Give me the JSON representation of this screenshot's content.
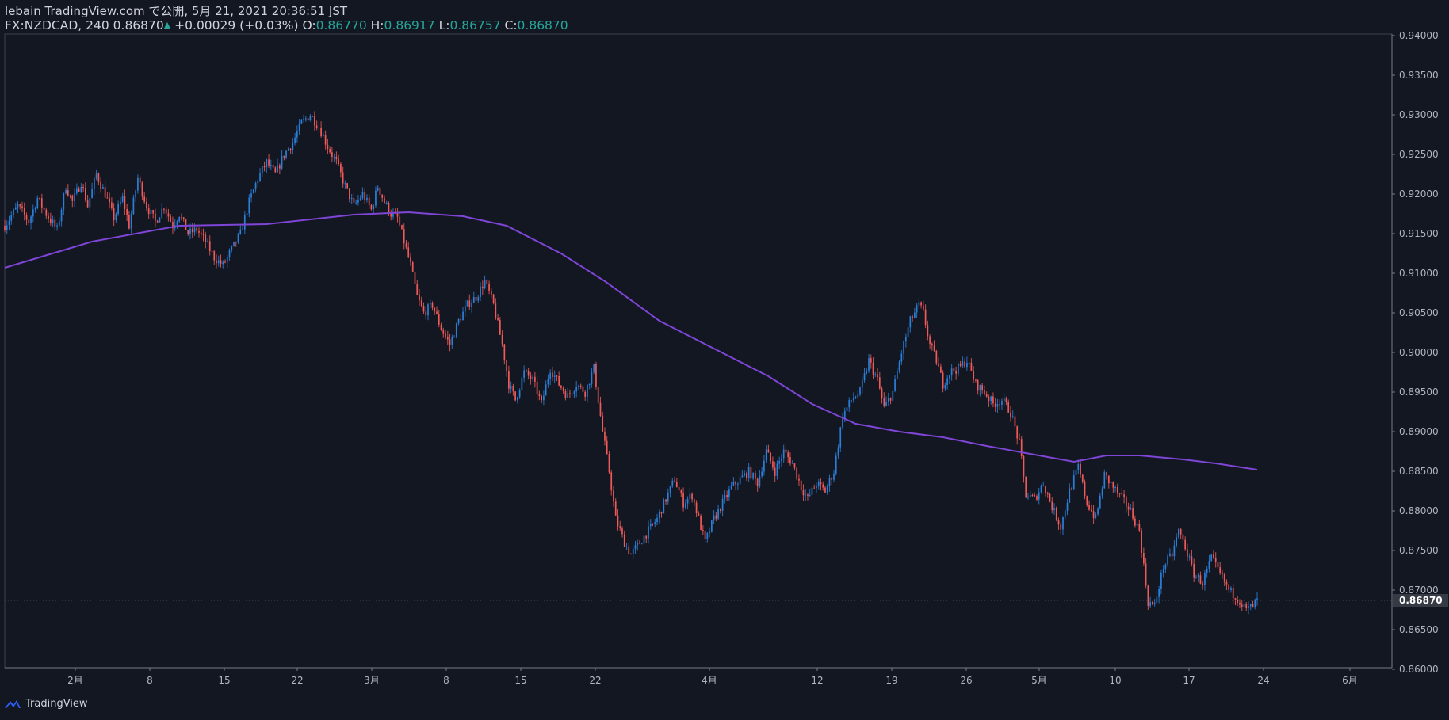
{
  "header": {
    "publish_line": "lebain TradingView.com で公開, 5月 21, 2021 20:36:51 JST",
    "symbol": "FX:NZDCAD, 240",
    "last": "0.86870",
    "change": "+0.00029 (+0.03%)",
    "o_label": "O:",
    "o_value": "0.86770",
    "h_label": "H:",
    "h_value": "0.86917",
    "l_label": "L:",
    "l_value": "0.86757",
    "c_label": "C:",
    "c_value": "0.86870"
  },
  "footer": {
    "brand": "TradingView"
  },
  "colors": {
    "background": "#131722",
    "up": "#2a7fd9",
    "down": "#f05a58",
    "ma": "#7e45d6",
    "text": "#d1d4dc",
    "price_tag": "#363a45"
  },
  "chart_data": {
    "type": "candlestick",
    "symbol": "FX:NZDCAD",
    "interval": "240",
    "ylim": [
      0.86,
      0.94
    ],
    "y_ticks": [
      "0.86000",
      "0.86500",
      "0.87000",
      "0.87500",
      "0.88000",
      "0.88500",
      "0.89000",
      "0.89500",
      "0.90000",
      "0.90500",
      "0.91000",
      "0.91500",
      "0.92000",
      "0.92500",
      "0.93000",
      "0.93500",
      "0.94000"
    ],
    "x_ticks": [
      "2月",
      "8",
      "15",
      "22",
      "3月",
      "8",
      "15",
      "22",
      "4月",
      "12",
      "19",
      "26",
      "5月",
      "10",
      "17",
      "24",
      "6月"
    ],
    "current_price": "0.86870",
    "price_path": [
      [
        0,
        0.916
      ],
      [
        6,
        0.9185
      ],
      [
        11,
        0.9165
      ],
      [
        15,
        0.9195
      ],
      [
        19,
        0.9175
      ],
      [
        24,
        0.9155
      ],
      [
        28,
        0.921
      ],
      [
        31,
        0.919
      ],
      [
        35,
        0.9215
      ],
      [
        38,
        0.9185
      ],
      [
        42,
        0.9225
      ],
      [
        46,
        0.92
      ],
      [
        50,
        0.917
      ],
      [
        54,
        0.9195
      ],
      [
        57,
        0.916
      ],
      [
        61,
        0.922
      ],
      [
        65,
        0.9185
      ],
      [
        69,
        0.9165
      ],
      [
        73,
        0.9185
      ],
      [
        77,
        0.916
      ],
      [
        80,
        0.9175
      ],
      [
        84,
        0.915
      ],
      [
        88,
        0.9155
      ],
      [
        92,
        0.914
      ],
      [
        96,
        0.912
      ],
      [
        100,
        0.911
      ],
      [
        104,
        0.913
      ],
      [
        108,
        0.915
      ],
      [
        112,
        0.919
      ],
      [
        116,
        0.922
      ],
      [
        120,
        0.924
      ],
      [
        124,
        0.9225
      ],
      [
        128,
        0.925
      ],
      [
        132,
        0.9265
      ],
      [
        136,
        0.929
      ],
      [
        140,
        0.93
      ],
      [
        144,
        0.9285
      ],
      [
        148,
        0.926
      ],
      [
        152,
        0.924
      ],
      [
        156,
        0.921
      ],
      [
        160,
        0.9185
      ],
      [
        164,
        0.92
      ],
      [
        168,
        0.918
      ],
      [
        171,
        0.921
      ],
      [
        174,
        0.919
      ],
      [
        177,
        0.9175
      ],
      [
        180,
        0.917
      ],
      [
        183,
        0.914
      ],
      [
        186,
        0.911
      ],
      [
        189,
        0.907
      ],
      [
        192,
        0.905
      ],
      [
        196,
        0.906
      ],
      [
        200,
        0.903
      ],
      [
        204,
        0.901
      ],
      [
        208,
        0.904
      ],
      [
        212,
        0.906
      ],
      [
        216,
        0.907
      ],
      [
        220,
        0.909
      ],
      [
        224,
        0.906
      ],
      [
        228,
        0.901
      ],
      [
        231,
        0.896
      ],
      [
        234,
        0.894
      ],
      [
        238,
        0.8975
      ],
      [
        242,
        0.8965
      ],
      [
        246,
        0.8935
      ],
      [
        250,
        0.898
      ],
      [
        254,
        0.896
      ],
      [
        258,
        0.8945
      ],
      [
        262,
        0.896
      ],
      [
        266,
        0.895
      ],
      [
        270,
        0.898
      ],
      [
        274,
        0.89
      ],
      [
        277,
        0.885
      ],
      [
        280,
        0.879
      ],
      [
        284,
        0.876
      ],
      [
        287,
        0.8745
      ],
      [
        291,
        0.876
      ],
      [
        295,
        0.8775
      ],
      [
        299,
        0.879
      ],
      [
        303,
        0.8815
      ],
      [
        307,
        0.884
      ],
      [
        311,
        0.881
      ],
      [
        315,
        0.882
      ],
      [
        318,
        0.879
      ],
      [
        321,
        0.876
      ],
      [
        325,
        0.879
      ],
      [
        329,
        0.881
      ],
      [
        333,
        0.883
      ],
      [
        337,
        0.884
      ],
      [
        341,
        0.885
      ],
      [
        345,
        0.8835
      ],
      [
        349,
        0.8875
      ],
      [
        353,
        0.885
      ],
      [
        357,
        0.8875
      ],
      [
        361,
        0.886
      ],
      [
        365,
        0.883
      ],
      [
        368,
        0.8815
      ],
      [
        372,
        0.8835
      ],
      [
        376,
        0.8825
      ],
      [
        380,
        0.885
      ],
      [
        384,
        0.892
      ],
      [
        388,
        0.894
      ],
      [
        392,
        0.895
      ],
      [
        396,
        0.899
      ],
      [
        400,
        0.8965
      ],
      [
        403,
        0.893
      ],
      [
        407,
        0.895
      ],
      [
        411,
        0.9
      ],
      [
        415,
        0.904
      ],
      [
        419,
        0.906
      ],
      [
        421,
        0.905
      ],
      [
        424,
        0.901
      ],
      [
        427,
        0.899
      ],
      [
        430,
        0.896
      ],
      [
        433,
        0.8975
      ],
      [
        437,
        0.898
      ],
      [
        441,
        0.899
      ],
      [
        445,
        0.896
      ],
      [
        449,
        0.895
      ],
      [
        453,
        0.8935
      ],
      [
        457,
        0.894
      ],
      [
        461,
        0.8925
      ],
      [
        465,
        0.8885
      ],
      [
        468,
        0.882
      ],
      [
        472,
        0.8815
      ],
      [
        476,
        0.8835
      ],
      [
        480,
        0.8805
      ],
      [
        484,
        0.878
      ],
      [
        488,
        0.8825
      ],
      [
        492,
        0.8855
      ],
      [
        496,
        0.881
      ],
      [
        500,
        0.879
      ],
      [
        504,
        0.8845
      ],
      [
        508,
        0.883
      ],
      [
        512,
        0.8815
      ],
      [
        516,
        0.88
      ],
      [
        520,
        0.8775
      ],
      [
        522,
        0.873
      ],
      [
        524,
        0.8685
      ],
      [
        527,
        0.868
      ],
      [
        531,
        0.873
      ],
      [
        535,
        0.8745
      ],
      [
        538,
        0.8775
      ],
      [
        541,
        0.8755
      ],
      [
        545,
        0.872
      ],
      [
        549,
        0.871
      ],
      [
        553,
        0.874
      ],
      [
        557,
        0.872
      ],
      [
        561,
        0.87
      ],
      [
        565,
        0.869
      ],
      [
        569,
        0.8675
      ],
      [
        572,
        0.868
      ],
      [
        574,
        0.8687
      ]
    ],
    "moving_average": [
      [
        0,
        0.9107
      ],
      [
        40,
        0.914
      ],
      [
        80,
        0.916
      ],
      [
        120,
        0.9162
      ],
      [
        160,
        0.9174
      ],
      [
        185,
        0.9177
      ],
      [
        210,
        0.9172
      ],
      [
        230,
        0.916
      ],
      [
        255,
        0.9125
      ],
      [
        275,
        0.909
      ],
      [
        300,
        0.904
      ],
      [
        325,
        0.9005
      ],
      [
        350,
        0.897
      ],
      [
        370,
        0.8935
      ],
      [
        390,
        0.891
      ],
      [
        410,
        0.89
      ],
      [
        430,
        0.8893
      ],
      [
        450,
        0.8882
      ],
      [
        470,
        0.8872
      ],
      [
        490,
        0.8862
      ],
      [
        505,
        0.887
      ],
      [
        520,
        0.887
      ],
      [
        540,
        0.8865
      ],
      [
        555,
        0.886
      ],
      [
        574,
        0.8852
      ]
    ]
  }
}
